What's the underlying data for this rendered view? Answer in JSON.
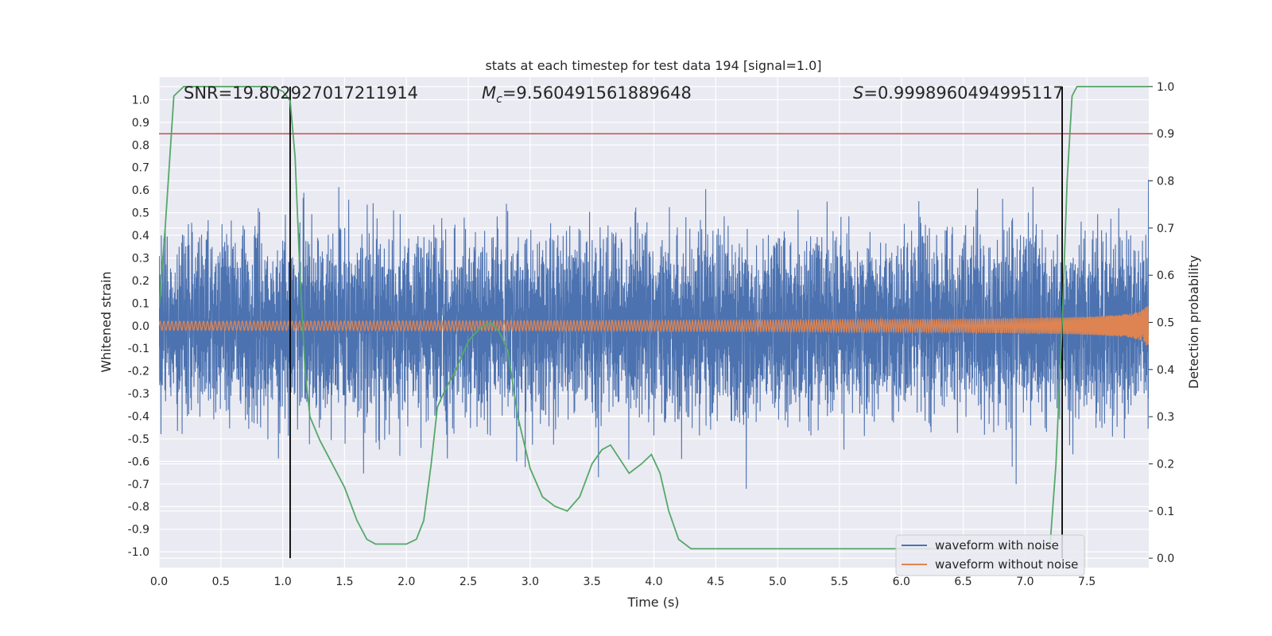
{
  "chart_data": {
    "type": "line",
    "title": "stats at each timestep for test data 194 [signal=1.0]",
    "xlabel": "Time (s)",
    "ylabel": "Whitened strain",
    "y2label": "Detection probability",
    "xlim": [
      0.0,
      8.0
    ],
    "ylim": [
      -1.07,
      1.1
    ],
    "y2lim": [
      -0.02,
      1.02
    ],
    "xticks": [
      "0.0",
      "0.5",
      "1.0",
      "1.5",
      "2.0",
      "2.5",
      "3.0",
      "3.5",
      "4.0",
      "4.5",
      "5.0",
      "5.5",
      "6.0",
      "6.5",
      "7.0",
      "7.5"
    ],
    "yticks": [
      "1.0",
      "0.9",
      "0.8",
      "0.7",
      "0.6",
      "0.5",
      "0.4",
      "0.3",
      "0.2",
      "0.1",
      "0.0",
      "-0.1",
      "-0.2",
      "-0.3",
      "-0.4",
      "-0.5",
      "-0.6",
      "-0.7",
      "-0.8",
      "-0.9",
      "-1.0"
    ],
    "y2ticks": [
      "1.0",
      "0.9",
      "0.8",
      "0.7",
      "0.6",
      "0.5",
      "0.4",
      "0.3",
      "0.2",
      "0.1",
      "0.0"
    ],
    "annotations": {
      "snr": "SNR=19.802927017211914",
      "mc_symbol": "M",
      "mc_sub": "c",
      "mc_value": "=9.560491561889648",
      "s_symbol": "S",
      "s_value": "=0.9998960494995117"
    },
    "threshold_y2": 0.9,
    "vertical_markers_x": [
      1.06,
      7.3
    ],
    "series": [
      {
        "name": "waveform with noise",
        "color": "#4c72b0",
        "axis": "left",
        "kind": "noisy_strain",
        "typical_amplitude": 0.33,
        "max_value": 0.97,
        "min_value": -0.96
      },
      {
        "name": "waveform without noise",
        "color": "#dd8452",
        "axis": "left",
        "kind": "chirp",
        "initial_amplitude": 0.02,
        "initial_frequency_hz": 31,
        "merger_time": 8.0
      },
      {
        "name": "detection probability",
        "color": "#55a868",
        "axis": "right",
        "x": [
          0.0,
          0.05,
          0.12,
          0.2,
          0.5,
          0.9,
          1.0,
          1.06,
          1.1,
          1.14,
          1.18,
          1.22,
          1.3,
          1.4,
          1.5,
          1.6,
          1.68,
          1.75,
          1.85,
          2.0,
          2.08,
          2.14,
          2.2,
          2.25,
          2.3,
          2.4,
          2.5,
          2.6,
          2.68,
          2.75,
          2.82,
          2.9,
          3.0,
          3.1,
          3.2,
          3.3,
          3.4,
          3.5,
          3.58,
          3.65,
          3.7,
          3.8,
          3.9,
          3.98,
          4.05,
          4.12,
          4.2,
          4.3,
          5.0,
          6.0,
          7.0,
          7.2,
          7.25,
          7.3,
          7.34,
          7.38,
          7.42,
          7.5,
          8.0
        ],
        "values": [
          0.53,
          0.7,
          0.98,
          1.0,
          1.0,
          1.0,
          0.99,
          0.97,
          0.85,
          0.6,
          0.4,
          0.3,
          0.25,
          0.2,
          0.15,
          0.08,
          0.04,
          0.03,
          0.03,
          0.03,
          0.04,
          0.08,
          0.2,
          0.32,
          0.35,
          0.4,
          0.46,
          0.49,
          0.5,
          0.48,
          0.44,
          0.3,
          0.19,
          0.13,
          0.11,
          0.1,
          0.13,
          0.2,
          0.23,
          0.24,
          0.22,
          0.18,
          0.2,
          0.22,
          0.18,
          0.1,
          0.04,
          0.02,
          0.02,
          0.02,
          0.02,
          0.02,
          0.2,
          0.5,
          0.8,
          0.98,
          1.0,
          1.0,
          1.0
        ]
      }
    ],
    "legend_entries": [
      "waveform with noise",
      "waveform without noise"
    ],
    "legend_position": "lower-right",
    "grid": true
  }
}
